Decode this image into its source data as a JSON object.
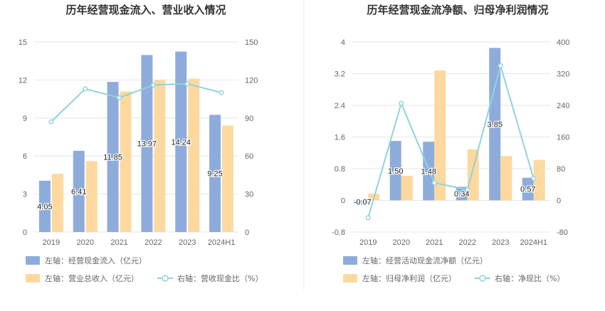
{
  "colors": {
    "bar_left": "#8eacdb",
    "bar_right": "#fdd9a0",
    "line": "#8fd4dc",
    "divider": "#eeeeee"
  },
  "chart_data": [
    {
      "type": "bar",
      "title": "历年经营现金流入、营业收入情况",
      "categories": [
        "2019",
        "2020",
        "2021",
        "2022",
        "2023",
        "2024H1"
      ],
      "y_left": {
        "min": 0,
        "max": 15,
        "ticks": [
          "0",
          "3",
          "6",
          "9",
          "12",
          "15"
        ]
      },
      "y_right": {
        "min": 0,
        "max": 150,
        "ticks": [
          "0",
          "30",
          "60",
          "90",
          "120",
          "150"
        ]
      },
      "series": [
        {
          "name": "左轴：经营现金流入（亿元）",
          "kind": "bar",
          "axis": "left",
          "values": [
            4.05,
            6.41,
            11.85,
            13.97,
            14.24,
            9.25
          ],
          "labels": [
            "4.05",
            "6.41",
            "11.85",
            "13.97",
            "14.24",
            "9.25"
          ]
        },
        {
          "name": "左轴：营业总收入（亿元）",
          "kind": "bar",
          "axis": "left",
          "values": [
            4.6,
            5.6,
            11.1,
            12.0,
            12.1,
            8.4
          ]
        },
        {
          "name": "右轴：营收现金比（%）",
          "kind": "line",
          "axis": "right",
          "values": [
            87,
            113,
            106,
            116,
            117,
            110
          ]
        }
      ]
    },
    {
      "type": "bar",
      "title": "历年经营现金流净额、归母净利润情况",
      "categories": [
        "2019",
        "2020",
        "2021",
        "2022",
        "2023",
        "2024H1"
      ],
      "y_left": {
        "min": -0.8,
        "max": 4,
        "ticks": [
          "-0.8",
          "0",
          "0.8",
          "1.6",
          "2.4",
          "3.2",
          "4"
        ]
      },
      "y_right": {
        "min": -80,
        "max": 400,
        "ticks": [
          "-80",
          "0",
          "80",
          "160",
          "240",
          "320",
          "400"
        ]
      },
      "series": [
        {
          "name": "左轴：经营活动现金流净额（亿元）",
          "kind": "bar",
          "axis": "left",
          "values": [
            -0.07,
            1.5,
            1.48,
            0.34,
            3.85,
            0.57
          ],
          "labels": [
            "-0.07",
            "1.50",
            "1.48",
            "0.34",
            "3.85",
            "0.57"
          ]
        },
        {
          "name": "左轴：归母净利润（亿元）",
          "kind": "bar",
          "axis": "left",
          "values": [
            0.17,
            0.62,
            3.28,
            1.29,
            1.12,
            1.02
          ]
        },
        {
          "name": "右轴：净现比（%）",
          "kind": "line",
          "axis": "right",
          "values": [
            -44,
            245,
            44,
            27,
            340,
            55
          ]
        }
      ]
    }
  ]
}
